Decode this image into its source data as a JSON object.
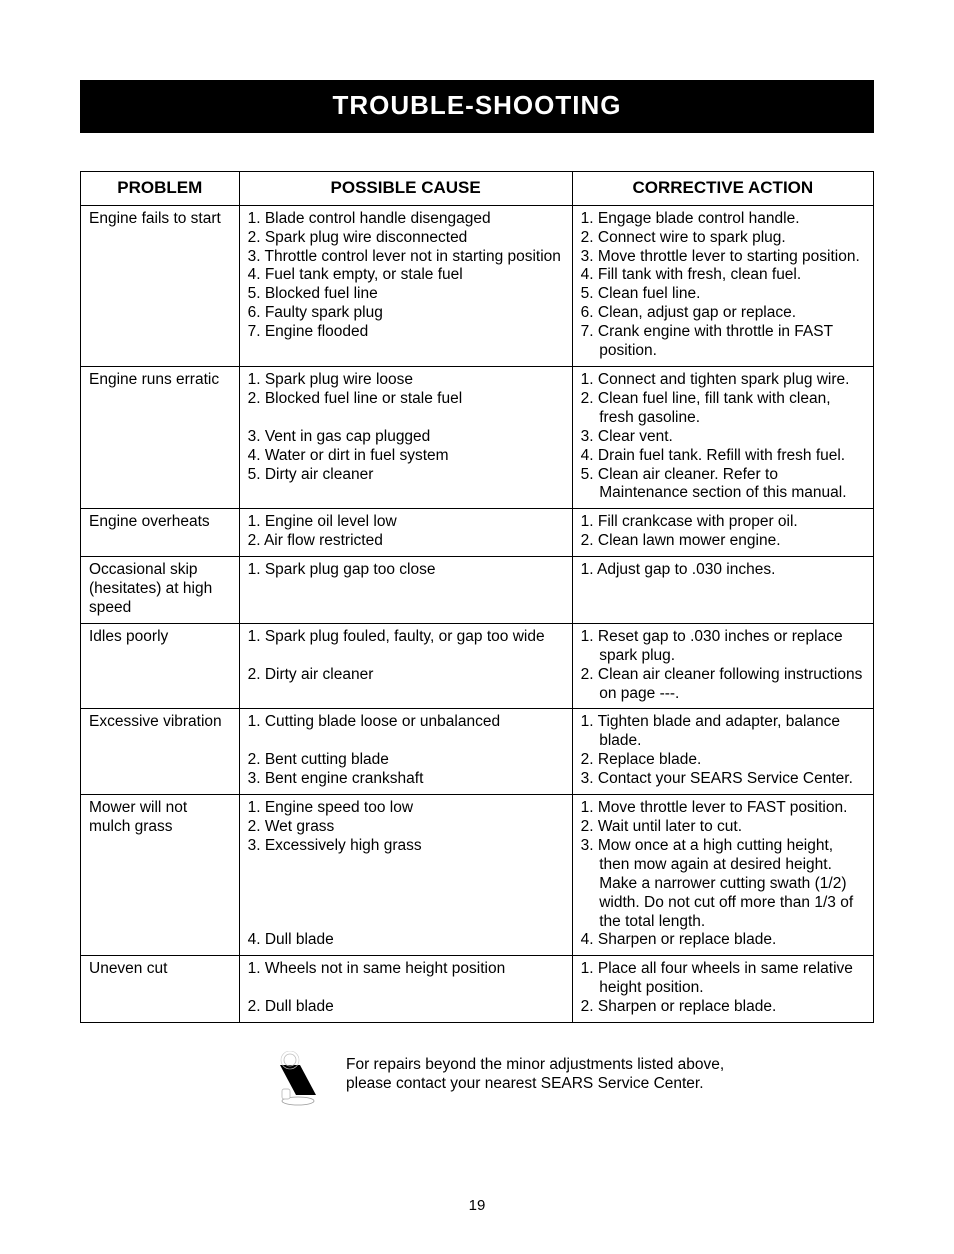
{
  "title": "TROUBLE-SHOOTING",
  "columns": [
    "PROBLEM",
    "POSSIBLE CAUSE",
    "CORRECTIVE ACTION"
  ],
  "rows": [
    {
      "problem": "Engine fails to start",
      "causes": [
        "1. Blade control handle disengaged",
        "2. Spark plug wire disconnected",
        "3. Throttle control lever not in starting position",
        "4. Fuel tank empty, or stale fuel",
        "5. Blocked fuel line",
        "6. Faulty spark plug",
        "7. Engine flooded"
      ],
      "actions": [
        "1. Engage blade control handle.",
        "2. Connect wire to spark plug.",
        "3. Move throttle lever to starting position.",
        "4. Fill tank with fresh, clean fuel.",
        "5. Clean fuel line.",
        "6. Clean, adjust gap or replace.",
        "7. Crank engine with throttle in FAST position."
      ]
    },
    {
      "problem": "Engine runs erratic",
      "causes": [
        "1. Spark plug wire loose",
        "2. Blocked fuel line or stale fuel",
        "",
        "3. Vent in gas cap plugged",
        "4. Water or dirt in fuel system",
        "5. Dirty air cleaner"
      ],
      "actions": [
        "1. Connect and tighten spark plug wire.",
        "2. Clean fuel line, fill tank with clean, fresh gasoline.",
        "3. Clear vent.",
        "4. Drain fuel tank. Refill with fresh fuel.",
        "5. Clean air cleaner. Refer to Maintenance section of this manual."
      ]
    },
    {
      "problem": "Engine overheats",
      "causes": [
        "1. Engine oil level low",
        "2. Air flow restricted"
      ],
      "actions": [
        "1. Fill crankcase with proper oil.",
        "2. Clean lawn mower engine."
      ]
    },
    {
      "problem": "Occasional skip (hesitates) at high speed",
      "causes": [
        "1. Spark plug gap too close"
      ],
      "actions": [
        "1. Adjust gap to .030 inches."
      ]
    },
    {
      "problem": "Idles poorly",
      "causes": [
        "1. Spark plug fouled, faulty, or gap too wide",
        "",
        "2. Dirty air cleaner"
      ],
      "actions": [
        "1. Reset gap to .030 inches or replace spark plug.",
        "2. Clean air cleaner following instructions on page ---."
      ]
    },
    {
      "problem": "Excessive vibration",
      "causes": [
        "1. Cutting blade loose or unbalanced",
        "",
        "2. Bent cutting blade",
        "3. Bent engine crankshaft"
      ],
      "actions": [
        "1. Tighten blade and adapter, balance blade.",
        "2. Replace blade.",
        "3. Contact your SEARS Service Center."
      ]
    },
    {
      "problem": "Mower will not mulch grass",
      "causes": [
        "1. Engine speed too low",
        "2. Wet grass",
        "3. Excessively high grass",
        "",
        "",
        "",
        "",
        "4. Dull blade"
      ],
      "actions": [
        "1. Move throttle lever to FAST position.",
        "2. Wait until later to cut.",
        "3. Mow once at a high cutting height, then mow again at desired height. Make a narrower cutting swath (1/2) width. Do not cut off more than 1/3 of the total length.",
        "4. Sharpen or replace blade."
      ]
    },
    {
      "problem": "Uneven cut",
      "causes": [
        "1. Wheels not in same height position",
        "",
        "2. Dull blade"
      ],
      "actions": [
        "1. Place all four wheels in same relative height position.",
        "2. Sharpen or replace blade."
      ]
    }
  ],
  "footer_line1": "For repairs beyond the minor adjustments listed above,",
  "footer_line2": "please contact your nearest SEARS Service Center.",
  "page_number": "19",
  "colors": {
    "titlebar_bg": "#000000",
    "titlebar_fg": "#ffffff",
    "border": "#000000",
    "page_bg": "#ffffff"
  }
}
